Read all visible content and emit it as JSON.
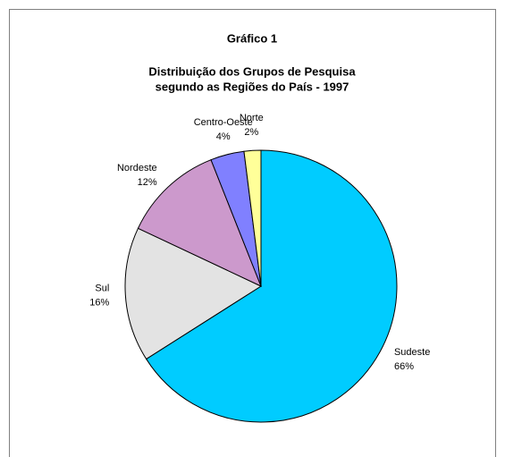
{
  "chart_data": {
    "type": "pie",
    "title": "Gráfico 1",
    "subtitle": [
      "Distribuição dos Grupos de Pesquisa",
      "segundo as Regiões do País - 1997"
    ],
    "categories": [
      "Sudeste",
      "Sul",
      "Nordeste",
      "Centro-Oeste",
      "Norte"
    ],
    "values": [
      66,
      16,
      12,
      4,
      2
    ],
    "value_labels": [
      "66%",
      "16%",
      "12%",
      "4%",
      "2%"
    ],
    "colors": [
      "#00ccff",
      "#e3e3e3",
      "#cc99cc",
      "#8080ff",
      "#ffff99"
    ]
  }
}
